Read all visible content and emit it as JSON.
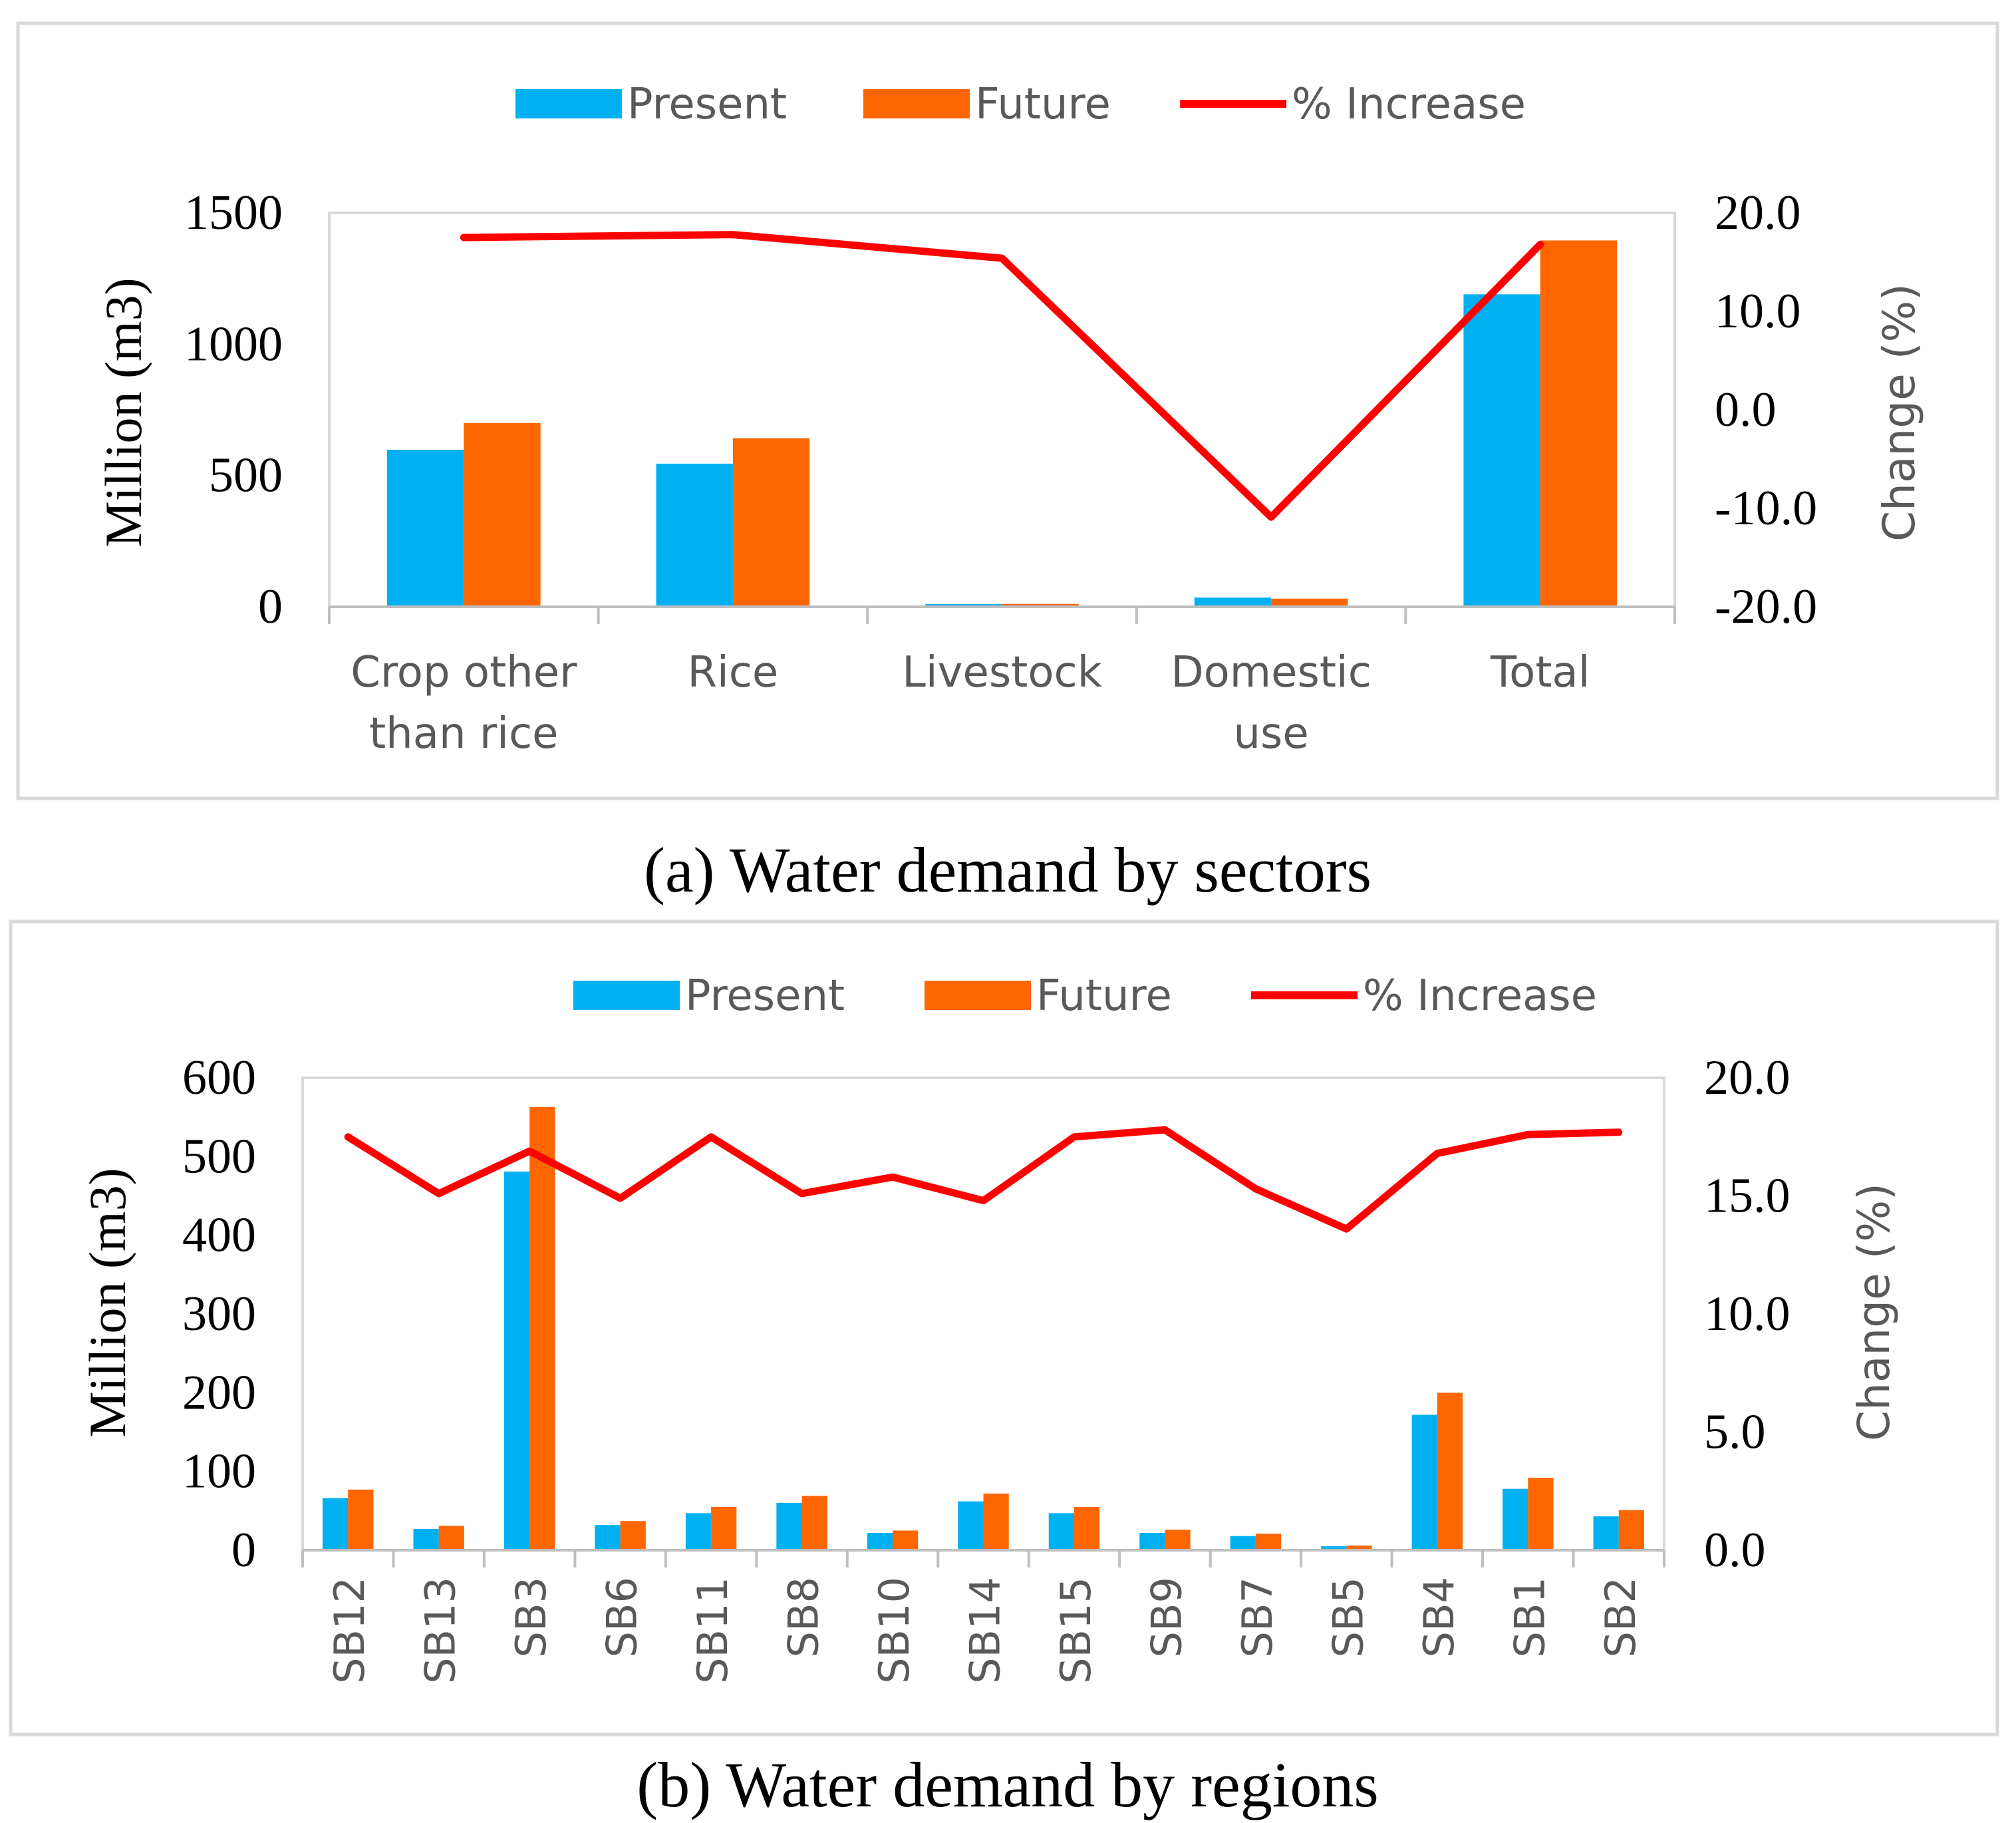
{
  "colors": {
    "present": "#00B0F0",
    "future": "#FF6600",
    "increase": "#FF0000",
    "axis_text": "#595959",
    "frame": "#D9D9D9"
  },
  "chart_data": [
    {
      "type": "bar",
      "panel": "a",
      "caption": "(a) Water demand by sectors",
      "legend": [
        "Present",
        "Future",
        "% Increase"
      ],
      "legend_position": "top-center",
      "ylabel": "Million (m3)",
      "y2label": "Change (%)",
      "ylim": [
        0,
        1500
      ],
      "yticks": [
        "0",
        "500",
        "1000",
        "1500"
      ],
      "y2lim": [
        -20,
        20
      ],
      "y2ticks": [
        "-20.0",
        "-10.0",
        "0.0",
        "10.0",
        "20.0"
      ],
      "categories": [
        "Crop other than rice",
        "Rice",
        "Livestock",
        "Domestic use",
        "Total"
      ],
      "category_lines": [
        [
          "Crop other",
          "than rice"
        ],
        [
          "Rice"
        ],
        [
          "Livestock"
        ],
        [
          "Domestic",
          "use"
        ],
        [
          "Total"
        ]
      ],
      "series": [
        {
          "name": "Present",
          "kind": "bar",
          "axis": "left",
          "values": [
            598,
            545,
            10,
            35,
            1190
          ]
        },
        {
          "name": "Future",
          "kind": "bar",
          "axis": "left",
          "values": [
            700,
            642,
            11,
            31,
            1395
          ]
        },
        {
          "name": "% Increase",
          "kind": "line",
          "axis": "right",
          "values": [
            17.5,
            17.8,
            15.4,
            -10.9,
            16.8
          ]
        }
      ]
    },
    {
      "type": "bar",
      "panel": "b",
      "caption": "(b) Water demand by regions",
      "legend": [
        "Present",
        "Future",
        "% Increase"
      ],
      "legend_position": "top-center",
      "ylabel": "Million (m3)",
      "y2label": "Change (%)",
      "ylim": [
        0,
        600
      ],
      "yticks": [
        "0",
        "100",
        "200",
        "300",
        "400",
        "500",
        "600"
      ],
      "y2lim": [
        0,
        20
      ],
      "y2ticks": [
        "0.0",
        "5.0",
        "10.0",
        "15.0",
        "20.0"
      ],
      "categories": [
        "SB12",
        "SB13",
        "SB3",
        "SB6",
        "SB11",
        "SB8",
        "SB10",
        "SB14",
        "SB15",
        "SB9",
        "SB7",
        "SB5",
        "SB4",
        "SB1",
        "SB2"
      ],
      "series": [
        {
          "name": "Present",
          "kind": "bar",
          "axis": "left",
          "values": [
            66,
            27,
            481,
            32,
            47,
            60,
            22,
            62,
            47,
            22,
            18,
            5,
            172,
            78,
            43
          ]
        },
        {
          "name": "Future",
          "kind": "bar",
          "axis": "left",
          "values": [
            77,
            31,
            563,
            37,
            55,
            69,
            25,
            72,
            55,
            26,
            21,
            6,
            200,
            92,
            51
          ]
        },
        {
          "name": "% Increase",
          "kind": "line",
          "axis": "right",
          "values": [
            17.5,
            15.1,
            16.9,
            14.9,
            17.5,
            15.1,
            15.8,
            14.8,
            17.5,
            17.8,
            15.3,
            13.6,
            16.8,
            17.6,
            17.7
          ]
        }
      ]
    }
  ]
}
